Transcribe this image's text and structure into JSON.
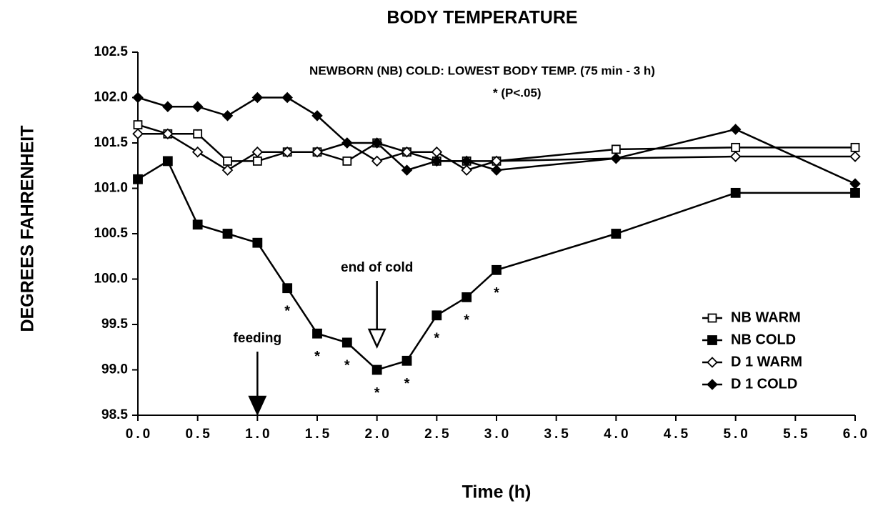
{
  "chart_data": {
    "type": "line",
    "title": "BODY TEMPERATURE",
    "subtitle": "NEWBORN (NB) COLD: LOWEST BODY TEMP. (75 min - 3 h)",
    "significance_note": "* (P<.05)",
    "significance_marker": "*",
    "significant_x": [
      1.25,
      1.5,
      1.75,
      2,
      2.25,
      2.5,
      2.75,
      3
    ],
    "xlabel": "Time (h)",
    "ylabel": "DEGREES FAHRENHEIT",
    "x": [
      0,
      0.25,
      0.5,
      0.75,
      1,
      1.25,
      1.5,
      1.75,
      2,
      2.25,
      2.5,
      2.75,
      3,
      4,
      5,
      6
    ],
    "series": [
      {
        "name": "NB WARM",
        "color": "#000000",
        "marker": "square-open",
        "values": [
          101.7,
          101.6,
          101.6,
          101.3,
          101.3,
          101.4,
          101.4,
          101.3,
          101.5,
          101.4,
          101.3,
          101.3,
          101.3,
          101.43,
          101.45,
          101.45
        ]
      },
      {
        "name": "NB COLD",
        "color": "#000000",
        "marker": "square-filled",
        "values": [
          101.1,
          101.3,
          100.6,
          100.5,
          100.4,
          99.9,
          99.4,
          99.3,
          99.0,
          99.1,
          99.6,
          99.8,
          100.1,
          100.5,
          100.95,
          100.95
        ]
      },
      {
        "name": "D 1 WARM",
        "color": "#000000",
        "marker": "diamond-open",
        "values": [
          101.6,
          101.6,
          101.4,
          101.2,
          101.4,
          101.4,
          101.4,
          101.5,
          101.3,
          101.4,
          101.4,
          101.2,
          101.3,
          101.33,
          101.35,
          101.35
        ]
      },
      {
        "name": "D 1 COLD",
        "color": "#000000",
        "marker": "diamond-filled",
        "values": [
          102.0,
          101.9,
          101.9,
          101.8,
          102.0,
          102.0,
          101.8,
          101.5,
          101.5,
          101.2,
          101.3,
          101.3,
          101.2,
          101.33,
          101.65,
          101.05
        ]
      }
    ],
    "annotations": [
      {
        "text": "feeding",
        "x": 1,
        "arrow": "filled"
      },
      {
        "text": "end of cold",
        "x": 2,
        "arrow": "open"
      }
    ],
    "xlim": [
      0,
      6
    ],
    "xticks": [
      {
        "value": 0,
        "label": "0.0"
      },
      0.5,
      {
        "value": 1,
        "label": "1.0"
      },
      1.5,
      {
        "value": 2,
        "label": "2.0"
      },
      2.5,
      {
        "value": 3,
        "label": "3.0"
      },
      3.5,
      {
        "value": 4,
        "label": "4.0"
      },
      4.5,
      {
        "value": 5,
        "label": "5.0"
      },
      5.5,
      {
        "value": 6,
        "label": "6.0"
      }
    ],
    "ylim": [
      98.5,
      102.5
    ],
    "yticks": [
      98.5,
      {
        "value": 99,
        "label": "99.0"
      },
      99.5,
      {
        "value": 100,
        "label": "100.0"
      },
      100.5,
      {
        "value": 101,
        "label": "101.0"
      },
      101.5,
      {
        "value": 102,
        "label": "102.0"
      },
      102.5
    ],
    "legend": "lower right",
    "grid": false
  }
}
